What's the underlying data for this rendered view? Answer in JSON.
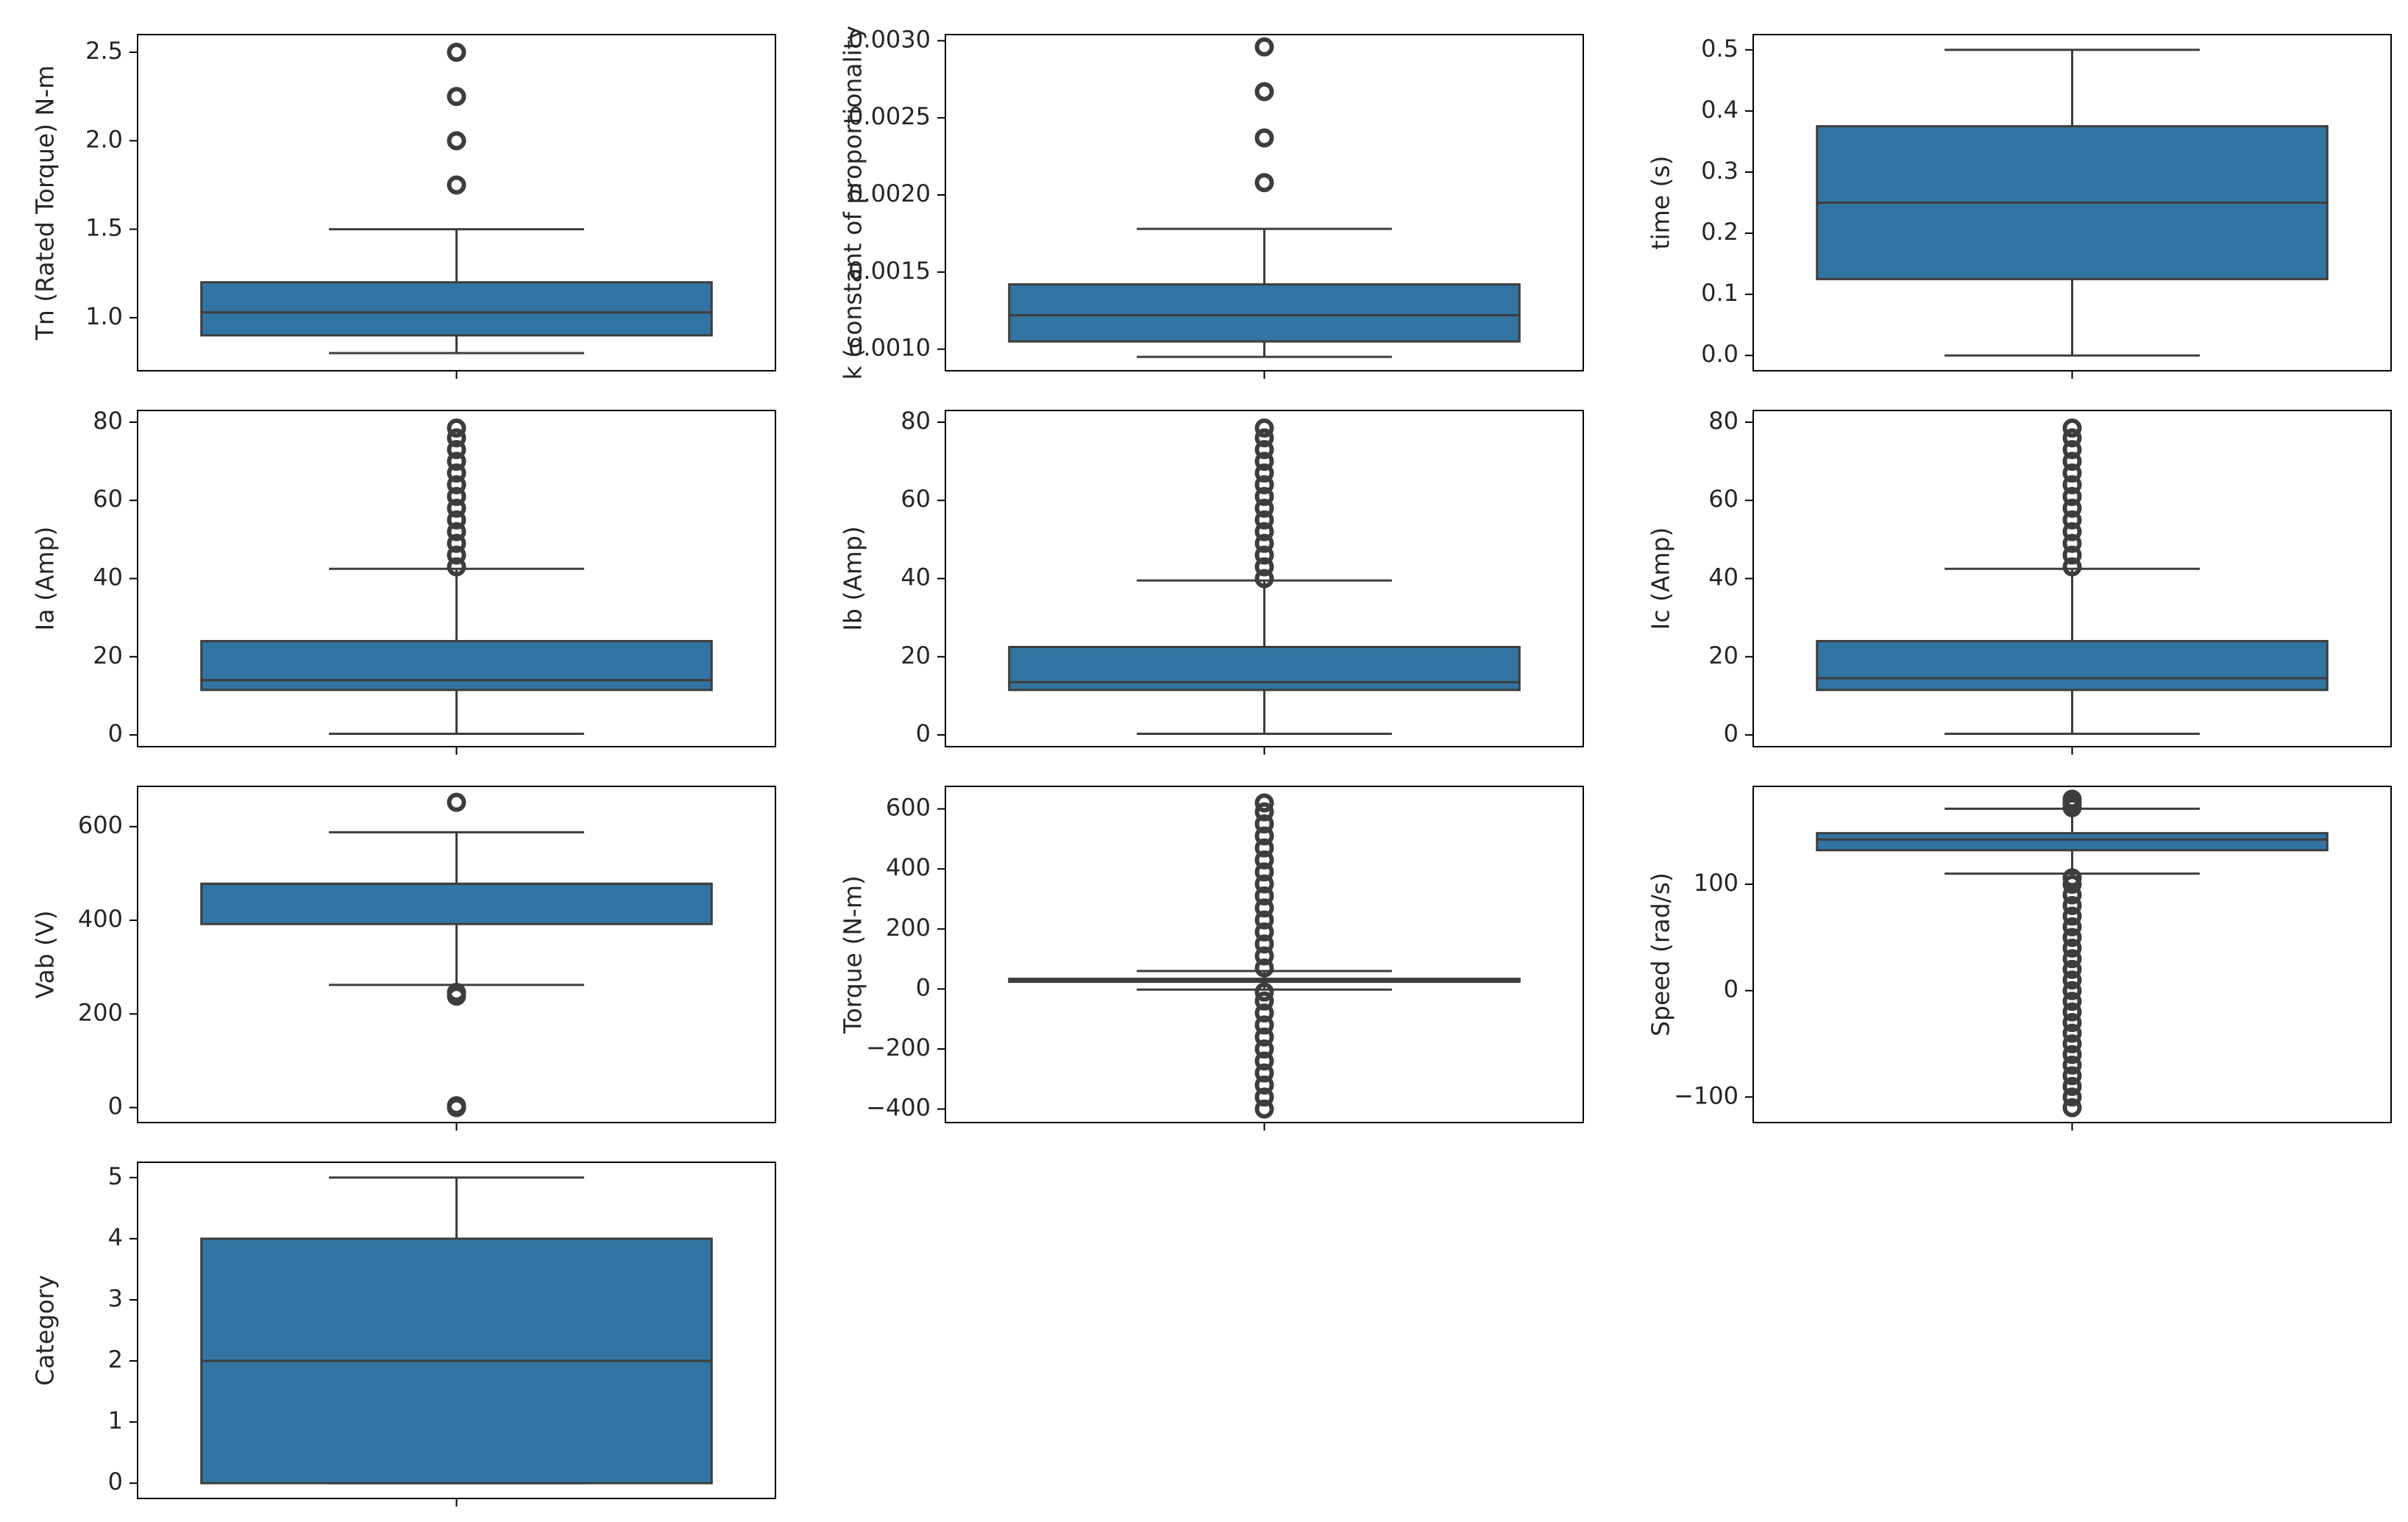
{
  "figure": {
    "title": "",
    "layout": "4 rows x 3 columns of box plots",
    "box_color": "#3274a1",
    "line_color": "#3d3d3d"
  },
  "chart_data": [
    {
      "type": "box",
      "ylabel": "Tn (Rated Torque) N-m",
      "ylim": [
        0.7,
        2.6
      ],
      "ticks": [
        1.0,
        1.5,
        2.0,
        2.5
      ],
      "tick_labels": [
        "1.0",
        "1.5",
        "2.0",
        "2.5"
      ],
      "stats": {
        "whisker_low": 0.8,
        "q1": 0.9,
        "median": 1.03,
        "q3": 1.2,
        "whisker_high": 1.5
      },
      "outliers": [
        1.75,
        2.0,
        2.25,
        2.5
      ]
    },
    {
      "type": "box",
      "ylabel": "k (constant of proportionality",
      "ylim": [
        0.00086,
        0.00304
      ],
      "ticks": [
        0.001,
        0.0015,
        0.002,
        0.0025,
        0.003
      ],
      "tick_labels": [
        "0.0010",
        "0.0015",
        "0.0020",
        "0.0025",
        "0.0030"
      ],
      "stats": {
        "whisker_low": 0.00095,
        "q1": 0.00105,
        "median": 0.00122,
        "q3": 0.00142,
        "whisker_high": 0.00178
      },
      "outliers": [
        0.00208,
        0.00237,
        0.00267,
        0.00296
      ]
    },
    {
      "type": "box",
      "ylabel": "time (s)",
      "ylim": [
        -0.025,
        0.525
      ],
      "ticks": [
        0.0,
        0.1,
        0.2,
        0.3,
        0.4,
        0.5
      ],
      "tick_labels": [
        "0.0",
        "0.1",
        "0.2",
        "0.3",
        "0.4",
        "0.5"
      ],
      "stats": {
        "whisker_low": 0.0,
        "q1": 0.125,
        "median": 0.25,
        "q3": 0.375,
        "whisker_high": 0.5
      },
      "outliers": []
    },
    {
      "type": "box",
      "ylabel": "Ia (Amp)",
      "ylim": [
        -3,
        83
      ],
      "ticks": [
        0,
        20,
        40,
        60,
        80
      ],
      "tick_labels": [
        "0",
        "20",
        "40",
        "60",
        "80"
      ],
      "stats": {
        "whisker_low": 0.3,
        "q1": 11.5,
        "median": 14,
        "q3": 24,
        "whisker_high": 42.5
      },
      "outliers": [
        43,
        46,
        49,
        52,
        55,
        58,
        61,
        64,
        67,
        70,
        73,
        76,
        78.5
      ]
    },
    {
      "type": "box",
      "ylabel": "Ib (Amp)",
      "ylim": [
        -3,
        83
      ],
      "ticks": [
        0,
        20,
        40,
        60,
        80
      ],
      "tick_labels": [
        "0",
        "20",
        "40",
        "60",
        "80"
      ],
      "stats": {
        "whisker_low": 0.3,
        "q1": 11.5,
        "median": 13.5,
        "q3": 22.5,
        "whisker_high": 39.5
      },
      "outliers": [
        40,
        43,
        46,
        49,
        52,
        55,
        58,
        61,
        64,
        67,
        70,
        73,
        76,
        78.5
      ]
    },
    {
      "type": "box",
      "ylabel": "Ic (Amp)",
      "ylim": [
        -3,
        83
      ],
      "ticks": [
        0,
        20,
        40,
        60,
        80
      ],
      "tick_labels": [
        "0",
        "20",
        "40",
        "60",
        "80"
      ],
      "stats": {
        "whisker_low": 0.3,
        "q1": 11.5,
        "median": 14.5,
        "q3": 24,
        "whisker_high": 42.5
      },
      "outliers": [
        43,
        46,
        49,
        52,
        55,
        58,
        61,
        64,
        67,
        70,
        73,
        76,
        78.5
      ]
    },
    {
      "type": "box",
      "ylabel": "Vab (V)",
      "ylim": [
        -32,
        686
      ],
      "ticks": [
        0,
        200,
        400,
        600
      ],
      "tick_labels": [
        "0",
        "200",
        "400",
        "600"
      ],
      "stats": {
        "whisker_low": 262,
        "q1": 392,
        "median": 478,
        "q3": 478,
        "whisker_high": 588
      },
      "outliers": [
        0,
        4,
        238,
        246,
        652
      ]
    },
    {
      "type": "box",
      "ylabel": "Torque (N-m)",
      "ylim": [
        -445,
        675
      ],
      "ticks": [
        -400,
        -200,
        0,
        200,
        400,
        600
      ],
      "tick_labels": [
        "−400",
        "−200",
        "0",
        "200",
        "400",
        "600"
      ],
      "stats": {
        "whisker_low": -2,
        "q1": 24,
        "median": 29,
        "q3": 34,
        "whisker_high": 60
      },
      "outliers": [
        -400,
        -360,
        -320,
        -280,
        -240,
        -200,
        -160,
        -120,
        -80,
        -40,
        -10,
        70,
        110,
        150,
        190,
        230,
        270,
        310,
        350,
        390,
        430,
        470,
        510,
        550,
        590,
        620
      ]
    },
    {
      "type": "box",
      "ylabel": "Speed (rad/s)",
      "ylim": [
        -124,
        192
      ],
      "ticks": [
        -100,
        0,
        100
      ],
      "tick_labels": [
        "−100",
        "0",
        "100"
      ],
      "stats": {
        "whisker_low": 110,
        "q1": 132,
        "median": 142,
        "q3": 148,
        "whisker_high": 171
      },
      "outliers": [
        -110,
        -100,
        -90,
        -80,
        -70,
        -60,
        -50,
        -40,
        -30,
        -20,
        -10,
        0,
        10,
        20,
        30,
        40,
        50,
        60,
        70,
        80,
        90,
        100,
        106,
        172,
        176,
        180
      ]
    },
    {
      "type": "box",
      "ylabel": "Category",
      "ylim": [
        -0.25,
        5.25
      ],
      "ticks": [
        0,
        1,
        2,
        3,
        4,
        5
      ],
      "tick_labels": [
        "0",
        "1",
        "2",
        "3",
        "4",
        "5"
      ],
      "stats": {
        "whisker_low": 0,
        "q1": 0,
        "median": 2,
        "q3": 4,
        "whisker_high": 5
      },
      "outliers": []
    }
  ]
}
